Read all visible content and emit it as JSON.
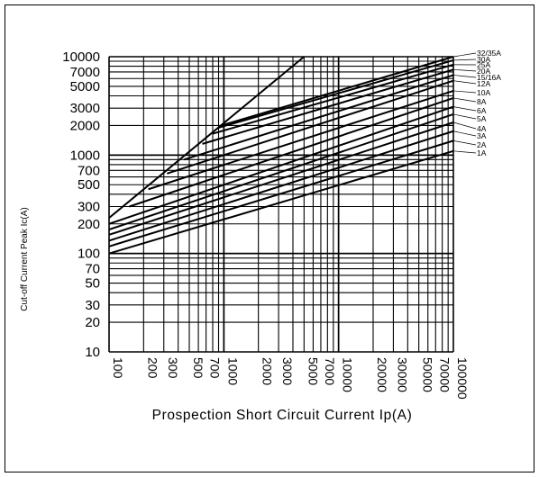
{
  "chart_data": {
    "type": "line",
    "xlabel": "Prospection Short Circuit Current Ip(A)",
    "ylabel": "Cut-off Current Peak Ic(A)",
    "x_scale": "log",
    "y_scale": "log",
    "xlim": [
      100,
      100000
    ],
    "ylim": [
      10,
      10000
    ],
    "grid": true,
    "x_ticks": [
      100,
      200,
      300,
      500,
      700,
      1000,
      2000,
      3000,
      5000,
      7000,
      10000,
      20000,
      30000,
      50000,
      70000,
      100000
    ],
    "x_tick_labels": [
      "100",
      "200",
      "300",
      "500",
      "700",
      "1000",
      "2000",
      "3000",
      "5000",
      "7000",
      "10000",
      "20000",
      "30000",
      "50000",
      "70000",
      "100000"
    ],
    "y_ticks": [
      10,
      20,
      30,
      50,
      70,
      100,
      200,
      300,
      500,
      700,
      1000,
      2000,
      3000,
      5000,
      7000,
      10000
    ],
    "y_tick_labels": [
      "10",
      "20",
      "30",
      "50",
      "70",
      "100",
      "200",
      "300",
      "500",
      "700",
      "1000",
      "2000",
      "3000",
      "5000",
      "7000",
      "10000"
    ],
    "limit_line": {
      "x": [
        100,
        5000
      ],
      "y": [
        230,
        10000
      ]
    },
    "series": [
      {
        "name": "1A",
        "x": [
          100,
          100000
        ],
        "y": [
          100,
          1100
        ]
      },
      {
        "name": "2A",
        "x": [
          100,
          100000
        ],
        "y": [
          118,
          1400
        ]
      },
      {
        "name": "3A",
        "x": [
          100,
          100000
        ],
        "y": [
          135,
          1750
        ]
      },
      {
        "name": "4A",
        "x": [
          100,
          100000
        ],
        "y": [
          155,
          2150
        ]
      },
      {
        "name": "5A",
        "x": [
          100,
          100000
        ],
        "y": [
          175,
          2600
        ]
      },
      {
        "name": "6A",
        "x": [
          100,
          100000
        ],
        "y": [
          200,
          3100
        ]
      },
      {
        "name": "8A",
        "x": [
          150,
          100000
        ],
        "y": [
          300,
          3800
        ]
      },
      {
        "name": "10A",
        "x": [
          220,
          100000
        ],
        "y": [
          450,
          4500
        ]
      },
      {
        "name": "12A",
        "x": [
          320,
          100000
        ],
        "y": [
          650,
          5700
        ]
      },
      {
        "name": "15/16A",
        "x": [
          450,
          100000
        ],
        "y": [
          900,
          6500
        ]
      },
      {
        "name": "20A",
        "x": [
          650,
          100000
        ],
        "y": [
          1300,
          7400
        ]
      },
      {
        "name": "25A",
        "x": [
          800,
          100000
        ],
        "y": [
          1650,
          8300
        ]
      },
      {
        "name": "30A",
        "x": [
          900,
          100000
        ],
        "y": [
          1900,
          9200
        ]
      },
      {
        "name": "32/35A",
        "x": [
          950,
          100000
        ],
        "y": [
          2000,
          10000
        ]
      }
    ]
  }
}
